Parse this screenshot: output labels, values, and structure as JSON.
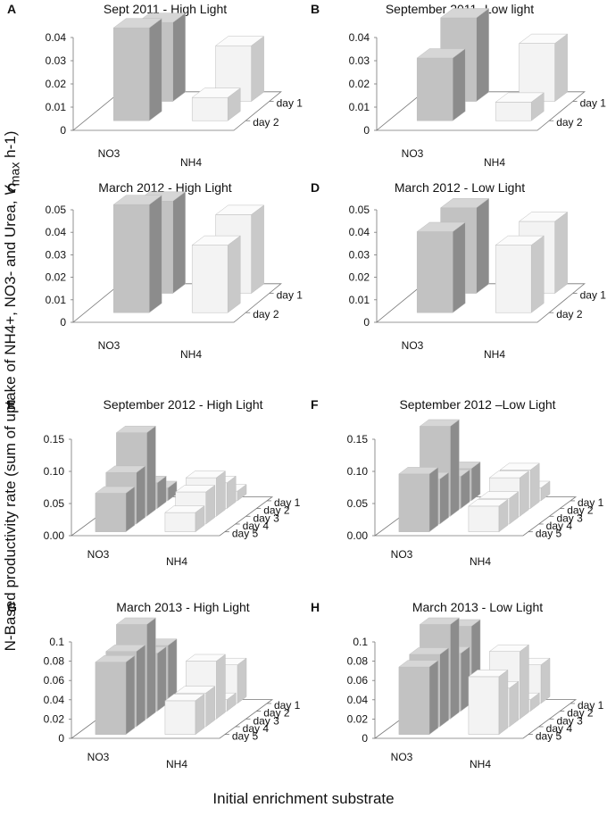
{
  "figure": {
    "y_axis_title_pre": "N-Based productivity rate (sum of uptake of NH4+, NO3- and Urea, ",
    "y_axis_title_var": "V",
    "y_axis_title_sub": "max",
    "y_axis_title_post": " h-1)",
    "x_axis_title": "Initial enrichment substrate"
  },
  "colors": {
    "no3_bar": "#c2c2c2",
    "nh4_bar": "#f3f3f3",
    "axis": "#555555"
  },
  "chart_data": [
    {
      "panel": "A",
      "title": "Sept 2011 - High Light",
      "type": "bar3d",
      "categories": [
        "NO3",
        "NH4"
      ],
      "days": [
        "day 1",
        "day 2"
      ],
      "yticks": [
        "0",
        "0.01",
        "0.02",
        "0.03",
        "0.04"
      ],
      "ylim": [
        0,
        0.04
      ],
      "values": {
        "NO3": [
          0.034,
          0.04
        ],
        "NH4": [
          0.024,
          0.01
        ]
      }
    },
    {
      "panel": "B",
      "title": "September 2011- Low light",
      "type": "bar3d",
      "categories": [
        "NO3",
        "NH4"
      ],
      "days": [
        "day 1",
        "day 2"
      ],
      "yticks": [
        "0",
        "0.01",
        "0.02",
        "0.03",
        "0.04"
      ],
      "ylim": [
        0,
        0.04
      ],
      "values": {
        "NO3": [
          0.036,
          0.027
        ],
        "NH4": [
          0.025,
          0.008
        ]
      }
    },
    {
      "panel": "C",
      "title": "March 2012 - High Light",
      "type": "bar3d",
      "categories": [
        "NO3",
        "NH4"
      ],
      "days": [
        "day 1",
        "day 2"
      ],
      "yticks": [
        "0",
        "0.01",
        "0.02",
        "0.03",
        "0.04",
        "0.05"
      ],
      "ylim": [
        0,
        0.05
      ],
      "values": {
        "NO3": [
          0.041,
          0.048
        ],
        "NH4": [
          0.035,
          0.03
        ]
      }
    },
    {
      "panel": "D",
      "title": "March 2012 - Low Light",
      "type": "bar3d",
      "categories": [
        "NO3",
        "NH4"
      ],
      "days": [
        "day 1",
        "day 2"
      ],
      "yticks": [
        "0",
        "0.01",
        "0.02",
        "0.03",
        "0.04",
        "0.05"
      ],
      "ylim": [
        0,
        0.05
      ],
      "values": {
        "NO3": [
          0.038,
          0.036
        ],
        "NH4": [
          0.032,
          0.03
        ]
      }
    },
    {
      "panel": "E",
      "title": "September 2012 - High Light",
      "type": "bar3d",
      "categories": [
        "NO3",
        "NH4"
      ],
      "days": [
        "day 1",
        "day 2",
        "day 3",
        "day 4",
        "day 5"
      ],
      "yticks": [
        "0.00",
        "0.05",
        "0.10",
        "0.15"
      ],
      "ylim": [
        0,
        0.15
      ],
      "values": {
        "NO3": [
          0.02,
          0.04,
          0.13,
          0.08,
          0.06
        ],
        "NH4": [
          0.015,
          0.04,
          0.06,
          0.05,
          0.03
        ]
      }
    },
    {
      "panel": "F",
      "title": "September 2012 –Low Light",
      "type": "bar3d",
      "categories": [
        "NO3",
        "NH4"
      ],
      "days": [
        "day 1",
        "day 2",
        "day 3",
        "day 4",
        "day 5"
      ],
      "yticks": [
        "0.00",
        "0.05",
        "0.10",
        "0.15"
      ],
      "ylim": [
        0,
        0.15
      ],
      "values": {
        "NO3": [
          0.05,
          0.05,
          0.14,
          0.07,
          0.09
        ],
        "NH4": [
          0.02,
          0.06,
          0.06,
          0.04,
          0.04
        ]
      }
    },
    {
      "panel": "G",
      "title": "March 2013 - High Light",
      "type": "bar3d",
      "categories": [
        "NO3",
        "NH4"
      ],
      "days": [
        "day 1",
        "day 2",
        "day 3",
        "day 4",
        "day 5"
      ],
      "yticks": [
        "0",
        "0.02",
        "0.04",
        "0.06",
        "0.08",
        "0.1"
      ],
      "ylim": [
        0,
        0.1
      ],
      "values": {
        "NO3": [
          0.06,
          0.06,
          0.098,
          0.078,
          0.075
        ],
        "NH4": [
          0.04,
          0.012,
          0.06,
          0.035,
          0.035
        ]
      }
    },
    {
      "panel": "H",
      "title": "March 2013 - Low Light",
      "type": "bar3d",
      "categories": [
        "NO3",
        "NH4"
      ],
      "days": [
        "day 1",
        "day 2",
        "day 3",
        "day 4",
        "day 5"
      ],
      "yticks": [
        "0",
        "0.02",
        "0.04",
        "0.06",
        "0.08",
        "0.1"
      ],
      "ylim": [
        0,
        0.1
      ],
      "values": {
        "NO3": [
          0.08,
          0.06,
          0.098,
          0.075,
          0.07
        ],
        "NH4": [
          0.04,
          0.012,
          0.07,
          0.04,
          0.06
        ]
      }
    }
  ]
}
